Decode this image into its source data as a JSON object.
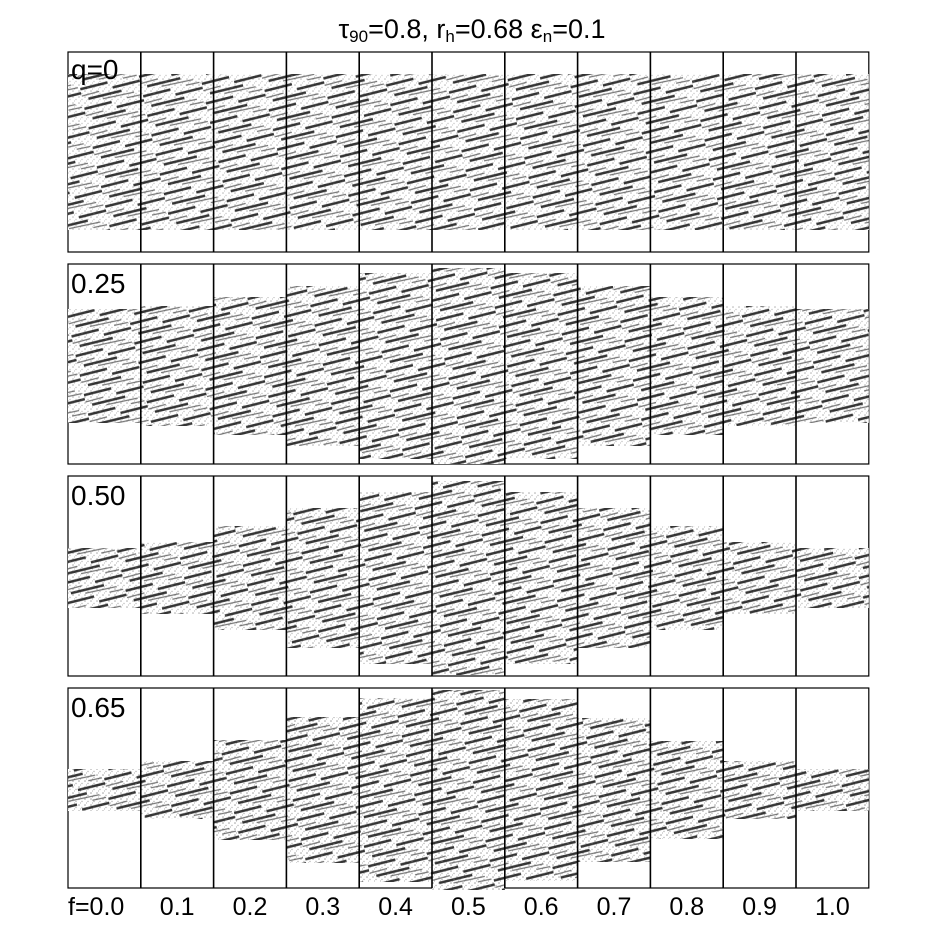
{
  "title": {
    "tau_symbol": "τ",
    "tau_sub": "90",
    "tau_val": "=0.8, r",
    "r_sub": "h",
    "r_val": "=0.68 ε",
    "eps_sub": "n",
    "eps_val": "=0.1"
  },
  "rows": [
    {
      "label": "q=0",
      "heights": [
        0.78,
        0.78,
        0.78,
        0.78,
        0.78,
        0.78,
        0.78,
        0.78,
        0.78,
        0.78,
        0.78
      ],
      "density": 0.42
    },
    {
      "label": "0.25",
      "heights": [
        0.57,
        0.6,
        0.69,
        0.8,
        0.93,
        0.98,
        0.93,
        0.8,
        0.69,
        0.6,
        0.57
      ],
      "density": 0.46
    },
    {
      "label": "0.50",
      "heights": [
        0.3,
        0.36,
        0.52,
        0.7,
        0.86,
        0.97,
        0.86,
        0.7,
        0.52,
        0.36,
        0.3
      ],
      "density": 0.5
    },
    {
      "label": "0.65",
      "heights": [
        0.21,
        0.29,
        0.5,
        0.73,
        0.92,
        1.0,
        0.91,
        0.72,
        0.49,
        0.29,
        0.21
      ],
      "density": 0.56
    }
  ],
  "f_labels": [
    "f=0.0",
    "0.1",
    "0.2",
    "0.3",
    "0.4",
    "0.5",
    "0.6",
    "0.7",
    "0.8",
    "0.9",
    "1.0"
  ],
  "colors": {
    "frame": "#000000",
    "texture_dark": "#222222",
    "texture_mid": "#666666"
  }
}
